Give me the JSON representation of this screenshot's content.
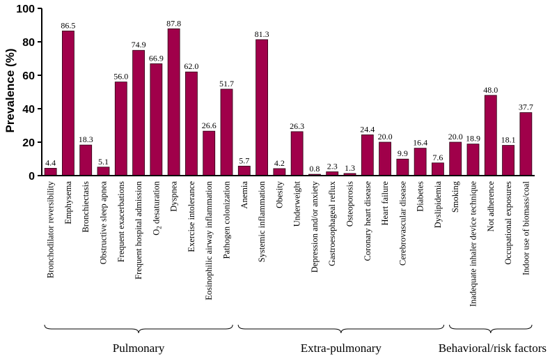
{
  "chart_data": {
    "type": "bar",
    "title": "",
    "xlabel": "",
    "ylabel": "Prevalence (%)",
    "ylim": [
      0,
      100
    ],
    "yticks": [
      0,
      20,
      40,
      60,
      80,
      100
    ],
    "grid": false,
    "bar_color": "#a0004a",
    "categories": [
      "Bronchodilator reversibility",
      "Emphysema",
      "Bronchiectasis",
      "Obstructive sleep apnea",
      "Frequent exacerbations",
      "Frequent hospital admission",
      "O2 desaturation",
      "Dyspnea",
      "Exercise intolerance",
      "Eosinophilic airway inflammation",
      "Pathogen colonization",
      "Anemia",
      "Systemic inflammation",
      "Obesity",
      "Underweight",
      "Depression and/or anxiety",
      "Gastroesophageal reflux",
      "Osteoporosis",
      "Coronary heart disease",
      "Heart failure",
      "Cerebrovascular disease",
      "Diabetes",
      "Dyslipidemia",
      "Smoking",
      "Inadequate inhaler device technique",
      "Not adherence",
      "Occupational exposures",
      "Indoor use of biomass/coal"
    ],
    "values": [
      4.4,
      86.5,
      18.3,
      5.1,
      56.0,
      74.9,
      66.9,
      87.8,
      62.0,
      26.6,
      51.7,
      5.7,
      81.3,
      4.2,
      26.3,
      0.8,
      2.3,
      1.3,
      24.4,
      20.0,
      9.9,
      16.4,
      7.6,
      20.0,
      18.9,
      48.0,
      18.1,
      37.7
    ],
    "value_labels": [
      "4.4",
      "86.5",
      "18.3",
      "5.1",
      "56.0",
      "74.9",
      "66.9",
      "87.8",
      "62.0",
      "26.6",
      "51.7",
      "5.7",
      "81.3",
      "4.2",
      "26.3",
      "0.8",
      "2.3",
      "1.3",
      "24.4",
      "20.0",
      "9.9",
      "16.4",
      "7.6",
      "20.0",
      "18.9",
      "48.0",
      "18.1",
      "37.7"
    ],
    "groups": [
      {
        "label": "Pulmonary",
        "start": 0,
        "end": 10
      },
      {
        "label": "Extra-pulmonary",
        "start": 11,
        "end": 22
      },
      {
        "label": "Behavioral/risk factors",
        "start": 23,
        "end": 27
      }
    ]
  }
}
